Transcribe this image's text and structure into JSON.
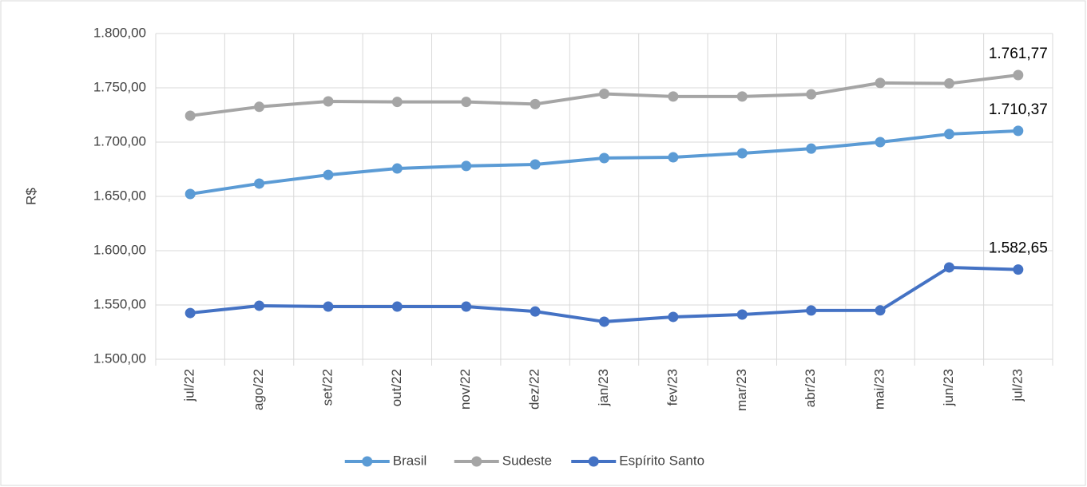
{
  "chart_data": {
    "type": "line",
    "y_label": "R$",
    "categories": [
      "jul/22",
      "ago/22",
      "set/22",
      "out/22",
      "nov/22",
      "dez/22",
      "jan/23",
      "fev/23",
      "mar/23",
      "abr/23",
      "mai/23",
      "jun/23",
      "jul/23"
    ],
    "series": [
      {
        "name": "Brasil",
        "color": "#5b9bd5",
        "values": [
          1652.2,
          1661.8,
          1669.8,
          1675.7,
          1678,
          1679.4,
          1685.3,
          1686,
          1689.7,
          1694,
          1700,
          1707.4,
          1710.37
        ],
        "value_labels": [
          null,
          null,
          null,
          null,
          null,
          null,
          null,
          null,
          null,
          null,
          null,
          null,
          "1.710,37"
        ]
      },
      {
        "name": "Sudeste",
        "color": "#a5a5a5",
        "values": [
          1724.3,
          1732.5,
          1737.5,
          1737,
          1737,
          1735,
          1744.5,
          1742,
          1742,
          1744,
          1754.5,
          1754,
          1761.77
        ],
        "value_labels": [
          null,
          null,
          null,
          null,
          null,
          null,
          null,
          null,
          null,
          null,
          null,
          null,
          "1.761,77"
        ]
      },
      {
        "name": "Espírito Santo",
        "color": "#4472c4",
        "values": [
          1542.6,
          1549.3,
          1548.5,
          1548.5,
          1548.5,
          1544,
          1534.6,
          1539,
          1541.2,
          1544.9,
          1545,
          1584.6,
          1582.65
        ],
        "value_labels": [
          null,
          null,
          null,
          null,
          null,
          null,
          null,
          null,
          null,
          null,
          null,
          null,
          "1.582,65"
        ]
      }
    ],
    "ylim": [
      1500,
      1800
    ],
    "yticks": [
      {
        "value": 1500,
        "label": "1.500,00"
      },
      {
        "value": 1550,
        "label": "1.550,00"
      },
      {
        "value": 1600,
        "label": "1.600,00"
      },
      {
        "value": 1650,
        "label": "1.650,00"
      },
      {
        "value": 1700,
        "label": "1.700,00"
      },
      {
        "value": 1750,
        "label": "1.750,00"
      },
      {
        "value": 1800,
        "label": "1.800,00"
      }
    ],
    "grid": true,
    "legend": "bottom"
  }
}
